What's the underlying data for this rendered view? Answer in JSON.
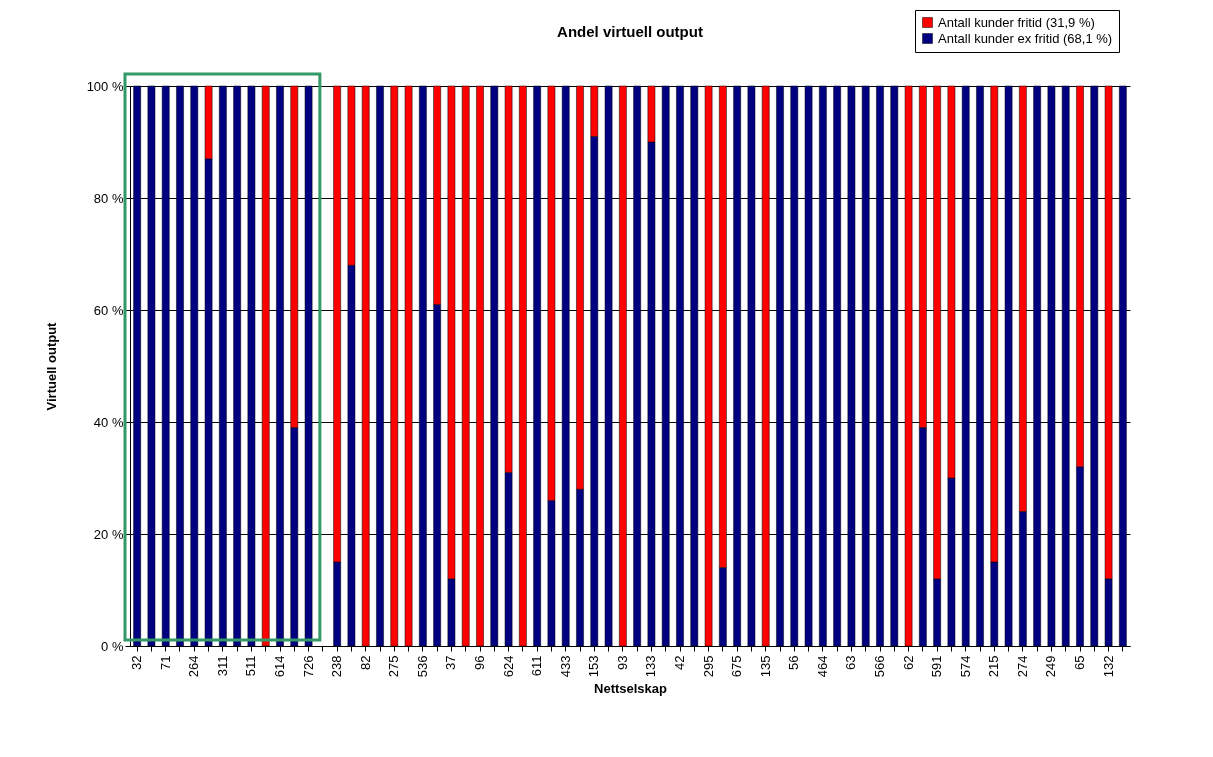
{
  "chart_data": {
    "type": "bar",
    "title": "Andel virtuell output",
    "xlabel": "Nettselskap",
    "ylabel": "Virtuell output",
    "categories": [
      "32",
      null,
      "71",
      null,
      "264",
      null,
      "311",
      null,
      "511",
      null,
      "614",
      null,
      "726",
      null,
      "238",
      null,
      "82",
      null,
      "275",
      null,
      "536",
      null,
      "37",
      null,
      "96",
      null,
      "624",
      null,
      "611",
      null,
      "433",
      null,
      "153",
      null,
      "93",
      null,
      "133",
      null,
      "42",
      null,
      "295",
      null,
      "675",
      null,
      "135",
      null,
      "56",
      null,
      "464",
      null,
      "63",
      null,
      "566",
      null,
      "62",
      null,
      "591",
      null,
      "574",
      null,
      "215",
      null,
      "274",
      null,
      "249",
      null,
      "65",
      null,
      "132",
      null
    ],
    "stacked": true,
    "series": [
      {
        "name": "Antall kunder ex fritid (68,1 %)",
        "color": "#000080",
        "values": [
          100,
          100,
          100,
          100,
          100,
          87,
          100,
          100,
          100,
          0,
          100,
          39,
          100,
          null,
          15,
          68,
          0,
          100,
          0,
          0,
          100,
          61,
          12,
          0,
          0,
          100,
          31,
          0,
          100,
          26,
          100,
          28,
          91,
          100,
          0,
          100,
          90,
          100,
          100,
          100,
          0,
          14,
          100,
          100,
          0,
          100,
          100,
          100,
          100,
          100,
          100,
          100,
          100,
          100,
          0,
          39,
          12,
          30,
          100,
          100,
          15,
          100,
          24,
          100,
          100,
          100,
          32,
          100,
          12,
          100
        ]
      },
      {
        "name": "Antall kunder fritid (31,9 %)",
        "color": "#ff0000",
        "values": [
          0,
          0,
          0,
          0,
          0,
          13,
          0,
          0,
          0,
          100,
          0,
          61,
          0,
          null,
          85,
          32,
          100,
          0,
          100,
          100,
          0,
          39,
          88,
          100,
          100,
          0,
          69,
          100,
          0,
          74,
          0,
          72,
          9,
          0,
          100,
          0,
          10,
          0,
          0,
          0,
          100,
          86,
          0,
          0,
          100,
          0,
          0,
          0,
          0,
          0,
          0,
          0,
          0,
          0,
          100,
          61,
          88,
          70,
          0,
          0,
          85,
          0,
          76,
          0,
          0,
          0,
          68,
          0,
          88,
          0
        ]
      }
    ],
    "ylim": [
      0,
      100
    ],
    "yticks": [
      {
        "value": 0,
        "label": "0 %"
      },
      {
        "value": 20,
        "label": "20 %"
      },
      {
        "value": 40,
        "label": "40 %"
      },
      {
        "value": 60,
        "label": "60 %"
      },
      {
        "value": 80,
        "label": "80 %"
      },
      {
        "value": 100,
        "label": "100 %"
      }
    ],
    "grid": "y",
    "legend": "top right"
  }
}
